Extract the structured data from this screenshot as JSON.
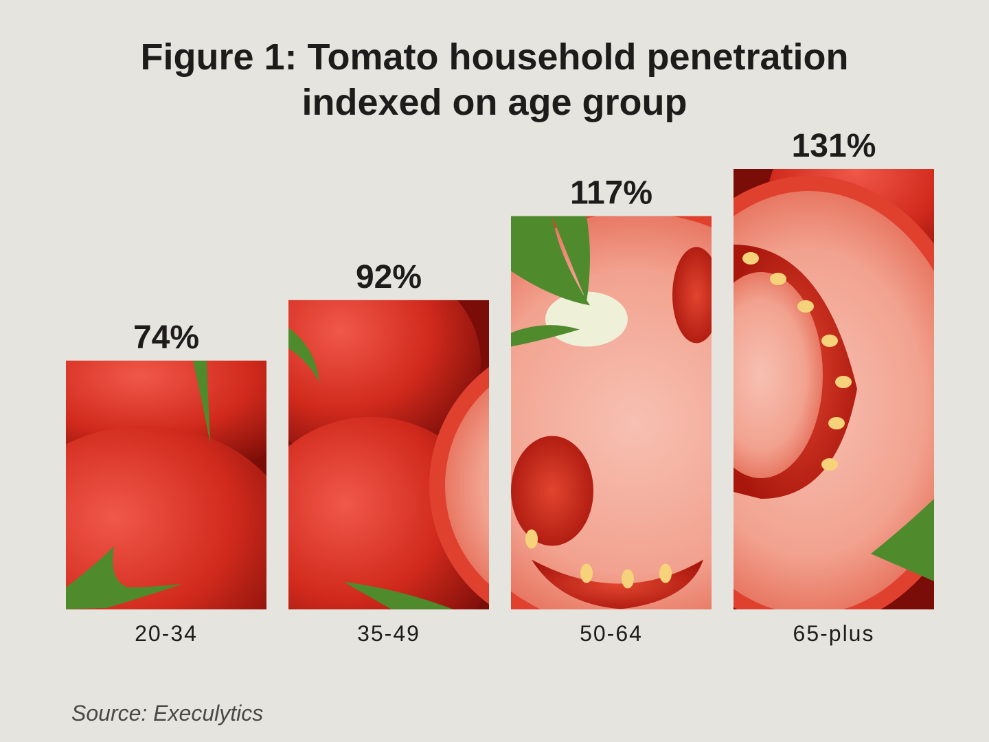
{
  "chart_data": {
    "type": "bar",
    "title": "Figure 1: Tomato household penetration indexed on age group",
    "title_lines": [
      "Figure 1: Tomato household penetration",
      "indexed on age group"
    ],
    "categories": [
      "20-34",
      "35-49",
      "50-64",
      "65-plus"
    ],
    "values": [
      74,
      92,
      117,
      131
    ],
    "value_labels": [
      "74%",
      "92%",
      "117%",
      "131%"
    ],
    "value_unit": "%",
    "ylim": [
      0,
      131
    ],
    "grid": false,
    "legend": "none",
    "bar_fill": "tomato photograph"
  },
  "source": "Source: Execulytics",
  "colors": {
    "background": "#e6e4df",
    "text": "#1e1c1b",
    "tomato_red": "#d12a1c",
    "tomato_dark": "#7a0d08",
    "tomato_flesh": "#f2a28f",
    "stem_green": "#4f8a2c"
  }
}
